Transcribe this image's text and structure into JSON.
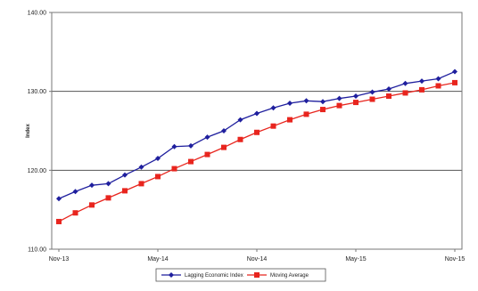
{
  "chart_data": {
    "type": "line",
    "ylabel": "Index",
    "ylim": [
      110,
      140
    ],
    "yticks": [
      "110.00",
      "120.00",
      "130.00",
      "140.00"
    ],
    "x_tick_labels": [
      "Nov-13",
      "May-14",
      "Nov-14",
      "May-15",
      "Nov-15"
    ],
    "x_tick_index": [
      0,
      6,
      12,
      18,
      24
    ],
    "grid": "horizontal",
    "legend_position": "bottom",
    "series": [
      {
        "name": "Lagging Economic Index",
        "color": "#1f1f9e",
        "marker": "diamond",
        "values": [
          116.4,
          117.3,
          118.1,
          118.3,
          119.4,
          120.4,
          121.5,
          123.0,
          123.1,
          124.2,
          125.0,
          126.4,
          127.2,
          127.9,
          128.5,
          128.8,
          128.7,
          129.1,
          129.4,
          129.9,
          130.3,
          131.0,
          131.3,
          131.6,
          132.5
        ]
      },
      {
        "name": "Moving Average",
        "color": "#e8251e",
        "marker": "square",
        "values": [
          113.5,
          114.6,
          115.6,
          116.5,
          117.4,
          118.3,
          119.2,
          120.2,
          121.1,
          122.0,
          122.9,
          123.9,
          124.8,
          125.6,
          126.4,
          127.1,
          127.7,
          128.2,
          128.6,
          129.0,
          129.4,
          129.8,
          130.2,
          130.7,
          131.1
        ]
      }
    ]
  }
}
